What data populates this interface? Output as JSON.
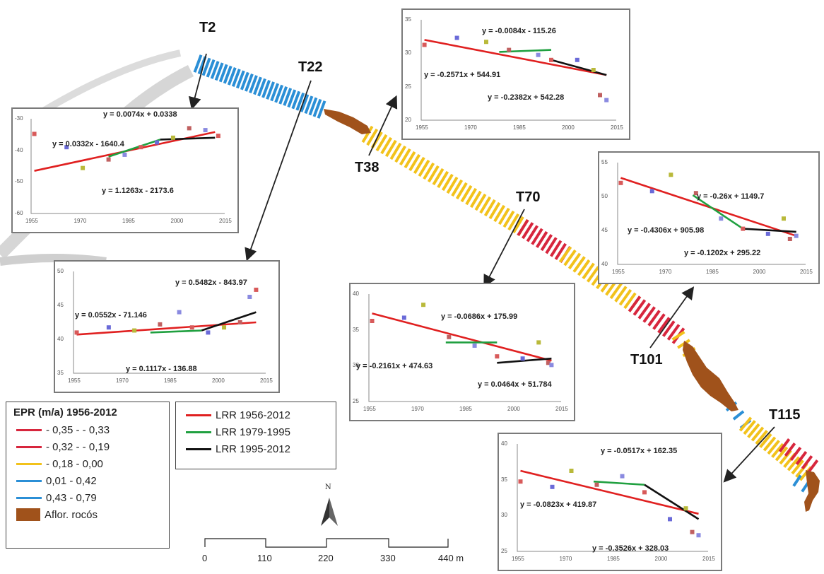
{
  "colors": {
    "class_neg_high": "#d7263d",
    "class_neg_mid": "#d7263d",
    "class_neg_low": "#f2c21b",
    "class_pos_low": "#2b8fd6",
    "class_pos_high": "#2b8fd6",
    "rock": "#a0521b",
    "lrr_1956_2012": "#e02020",
    "lrr_1979_1995": "#20a040",
    "lrr_1995_2012": "#111111"
  },
  "transects": [
    {
      "id": "t2",
      "label": "T2"
    },
    {
      "id": "t22",
      "label": "T22"
    },
    {
      "id": "t38",
      "label": "T38"
    },
    {
      "id": "t70",
      "label": "T70"
    },
    {
      "id": "t101",
      "label": "T101"
    },
    {
      "id": "t115",
      "label": "T115"
    }
  ],
  "epr_legend": {
    "title": "EPR (m/a) 1956-2012",
    "items": [
      {
        "label": "- 0,35 - - 0,33",
        "color": "#d7263d"
      },
      {
        "label": "- 0,32 - - 0,19",
        "color": "#d7263d"
      },
      {
        "label": "- 0,18 - 0,00",
        "color": "#f2c21b"
      },
      {
        "label": "0,01 - 0,42",
        "color": "#2b8fd6"
      },
      {
        "label": "0,43 - 0,79",
        "color": "#2b8fd6"
      }
    ],
    "rock_label": "Aflor. rocós"
  },
  "lrr_legend": {
    "items": [
      {
        "label": "LRR 1956-2012",
        "color": "#e02020"
      },
      {
        "label": "LRR 1979-1995",
        "color": "#20a040"
      },
      {
        "label": "LRR 1995-2012",
        "color": "#111111"
      }
    ]
  },
  "north_label": "N",
  "scale_bar": {
    "labels": [
      "0",
      "110",
      "220",
      "330",
      "440 m"
    ]
  },
  "chart_data": [
    {
      "type": "scatter",
      "name_ref": "T2",
      "xlim": [
        1955,
        2015
      ],
      "x_ticks": [
        "1955",
        "1970",
        "1985",
        "2000",
        "2015"
      ],
      "y_ticks": [
        "-30",
        "-40",
        "-50",
        "-60"
      ],
      "points": [
        [
          1956,
          0.16
        ],
        [
          1966,
          0.3
        ],
        [
          1971,
          0.52
        ],
        [
          1979,
          0.43
        ],
        [
          1984,
          0.38
        ],
        [
          1989,
          0.3
        ],
        [
          1994,
          0.25
        ],
        [
          1999,
          0.2
        ],
        [
          2004,
          0.1
        ],
        [
          2009,
          0.12
        ],
        [
          2013,
          0.18
        ]
      ],
      "lines": [
        {
          "series": "lrr_1956_2012",
          "x": [
            1956,
            2012
          ],
          "y": [
            0.55,
            0.14
          ]
        },
        {
          "series": "lrr_1979_1995",
          "x": [
            1979,
            1995
          ],
          "y": [
            0.4,
            0.22
          ]
        },
        {
          "series": "lrr_1995_2012",
          "x": [
            1995,
            2012
          ],
          "y": [
            0.22,
            0.2
          ]
        }
      ],
      "equations": [
        "y = 0.0074x + 0.0338",
        "y = 0.0332x - 1640.4",
        "y = 1.1263x - 2173.6"
      ]
    },
    {
      "type": "scatter",
      "name_ref": "T22",
      "xlim": [
        1955,
        2015
      ],
      "x_ticks": [
        "1955",
        "1970",
        "1985",
        "2000",
        "2015"
      ],
      "y_ticks": [
        "50",
        "45",
        "40",
        "35"
      ],
      "points": [
        [
          1956,
          0.6
        ],
        [
          1966,
          0.55
        ],
        [
          1974,
          0.58
        ],
        [
          1982,
          0.52
        ],
        [
          1988,
          0.4
        ],
        [
          1992,
          0.55
        ],
        [
          1997,
          0.6
        ],
        [
          2002,
          0.55
        ],
        [
          2007,
          0.5
        ],
        [
          2010,
          0.25
        ],
        [
          2012,
          0.18
        ]
      ],
      "lines": [
        {
          "series": "lrr_1956_2012",
          "x": [
            1956,
            2012
          ],
          "y": [
            0.62,
            0.5
          ]
        },
        {
          "series": "lrr_1979_1995",
          "x": [
            1979,
            1995
          ],
          "y": [
            0.6,
            0.58
          ]
        },
        {
          "series": "lrr_1995_2012",
          "x": [
            1995,
            2012
          ],
          "y": [
            0.58,
            0.4
          ]
        }
      ],
      "equations": [
        "y = 0.5482x - 843.97",
        "y = 0.0552x - 71.146",
        "y = 0.1117x - 136.88"
      ]
    },
    {
      "type": "scatter",
      "name_ref": "T38",
      "xlim": [
        1955,
        2015
      ],
      "x_ticks": [
        "1955",
        "1970",
        "1985",
        "2000",
        "2015"
      ],
      "y_ticks": [
        "35",
        "30",
        "25",
        "20"
      ],
      "points": [
        [
          1956,
          0.25
        ],
        [
          1966,
          0.18
        ],
        [
          1975,
          0.22
        ],
        [
          1982,
          0.3
        ],
        [
          1991,
          0.35
        ],
        [
          1995,
          0.4
        ],
        [
          2003,
          0.4
        ],
        [
          2008,
          0.5
        ],
        [
          2010,
          0.75
        ],
        [
          2012,
          0.8
        ]
      ],
      "lines": [
        {
          "series": "lrr_1956_2012",
          "x": [
            1956,
            2012
          ],
          "y": [
            0.2,
            0.55
          ]
        },
        {
          "series": "lrr_1979_1995",
          "x": [
            1979,
            1995
          ],
          "y": [
            0.32,
            0.3
          ]
        },
        {
          "series": "lrr_1995_2012",
          "x": [
            1995,
            2012
          ],
          "y": [
            0.4,
            0.55
          ]
        }
      ],
      "equations": [
        "y = -0.0084x - 115.26",
        "y = -0.2571x + 544.91",
        "y = -0.2382x + 542.28"
      ]
    },
    {
      "type": "scatter",
      "name_ref": "T70",
      "xlim": [
        1955,
        2015
      ],
      "x_ticks": [
        "1955",
        "1970",
        "1985",
        "2000",
        "2015"
      ],
      "y_ticks": [
        "40",
        "35",
        "30",
        "25"
      ],
      "points": [
        [
          1956,
          0.25
        ],
        [
          1966,
          0.22
        ],
        [
          1972,
          0.1
        ],
        [
          1980,
          0.4
        ],
        [
          1988,
          0.48
        ],
        [
          1995,
          0.58
        ],
        [
          2003,
          0.6
        ],
        [
          2008,
          0.45
        ],
        [
          2011,
          0.64
        ],
        [
          2012,
          0.66
        ]
      ],
      "lines": [
        {
          "series": "lrr_1956_2012",
          "x": [
            1956,
            2012
          ],
          "y": [
            0.18,
            0.62
          ]
        },
        {
          "series": "lrr_1979_1995",
          "x": [
            1979,
            1995
          ],
          "y": [
            0.45,
            0.45
          ]
        },
        {
          "series": "lrr_1995_2012",
          "x": [
            1995,
            2012
          ],
          "y": [
            0.64,
            0.6
          ]
        }
      ],
      "equations": [
        "y = -0.0686x + 175.99",
        "y = -0.2161x + 474.63",
        "y = 0.0464x + 51.784"
      ]
    },
    {
      "type": "scatter",
      "name_ref": "T101",
      "xlim": [
        1955,
        2015
      ],
      "x_ticks": [
        "1955",
        "1970",
        "1985",
        "2000",
        "2015"
      ],
      "y_ticks": [
        "55",
        "50",
        "45",
        "40"
      ],
      "points": [
        [
          1956,
          0.2
        ],
        [
          1966,
          0.28
        ],
        [
          1972,
          0.12
        ],
        [
          1980,
          0.3
        ],
        [
          1988,
          0.55
        ],
        [
          1995,
          0.65
        ],
        [
          2003,
          0.7
        ],
        [
          2008,
          0.55
        ],
        [
          2010,
          0.75
        ],
        [
          2012,
          0.72
        ]
      ],
      "lines": [
        {
          "series": "lrr_1956_2012",
          "x": [
            1956,
            2012
          ],
          "y": [
            0.15,
            0.72
          ]
        },
        {
          "series": "lrr_1979_1995",
          "x": [
            1979,
            1995
          ],
          "y": [
            0.32,
            0.65
          ]
        },
        {
          "series": "lrr_1995_2012",
          "x": [
            1995,
            2012
          ],
          "y": [
            0.65,
            0.68
          ]
        }
      ],
      "equations": [
        "y = -0.26x + 1149.7",
        "y = -0.4306x + 905.98",
        "y = -0.1202x + 295.22"
      ]
    },
    {
      "type": "scatter",
      "name_ref": "T115",
      "xlim": [
        1955,
        2015
      ],
      "x_ticks": [
        "1955",
        "1970",
        "1985",
        "2000",
        "2015"
      ],
      "y_ticks": [
        "40",
        "35",
        "30",
        "25"
      ],
      "points": [
        [
          1956,
          0.35
        ],
        [
          1966,
          0.4
        ],
        [
          1972,
          0.25
        ],
        [
          1980,
          0.38
        ],
        [
          1988,
          0.3
        ],
        [
          1995,
          0.45
        ],
        [
          2003,
          0.7
        ],
        [
          2008,
          0.6
        ],
        [
          2010,
          0.82
        ],
        [
          2012,
          0.85
        ]
      ],
      "lines": [
        {
          "series": "lrr_1956_2012",
          "x": [
            1956,
            2012
          ],
          "y": [
            0.25,
            0.65
          ]
        },
        {
          "series": "lrr_1979_1995",
          "x": [
            1979,
            1995
          ],
          "y": [
            0.35,
            0.38
          ]
        },
        {
          "series": "lrr_1995_2012",
          "x": [
            1995,
            2012
          ],
          "y": [
            0.38,
            0.7
          ]
        }
      ],
      "equations": [
        "y = -0.0517x + 162.35",
        "y = -0.0823x + 419.87",
        "y = -0.3526x + 328.03"
      ]
    }
  ]
}
